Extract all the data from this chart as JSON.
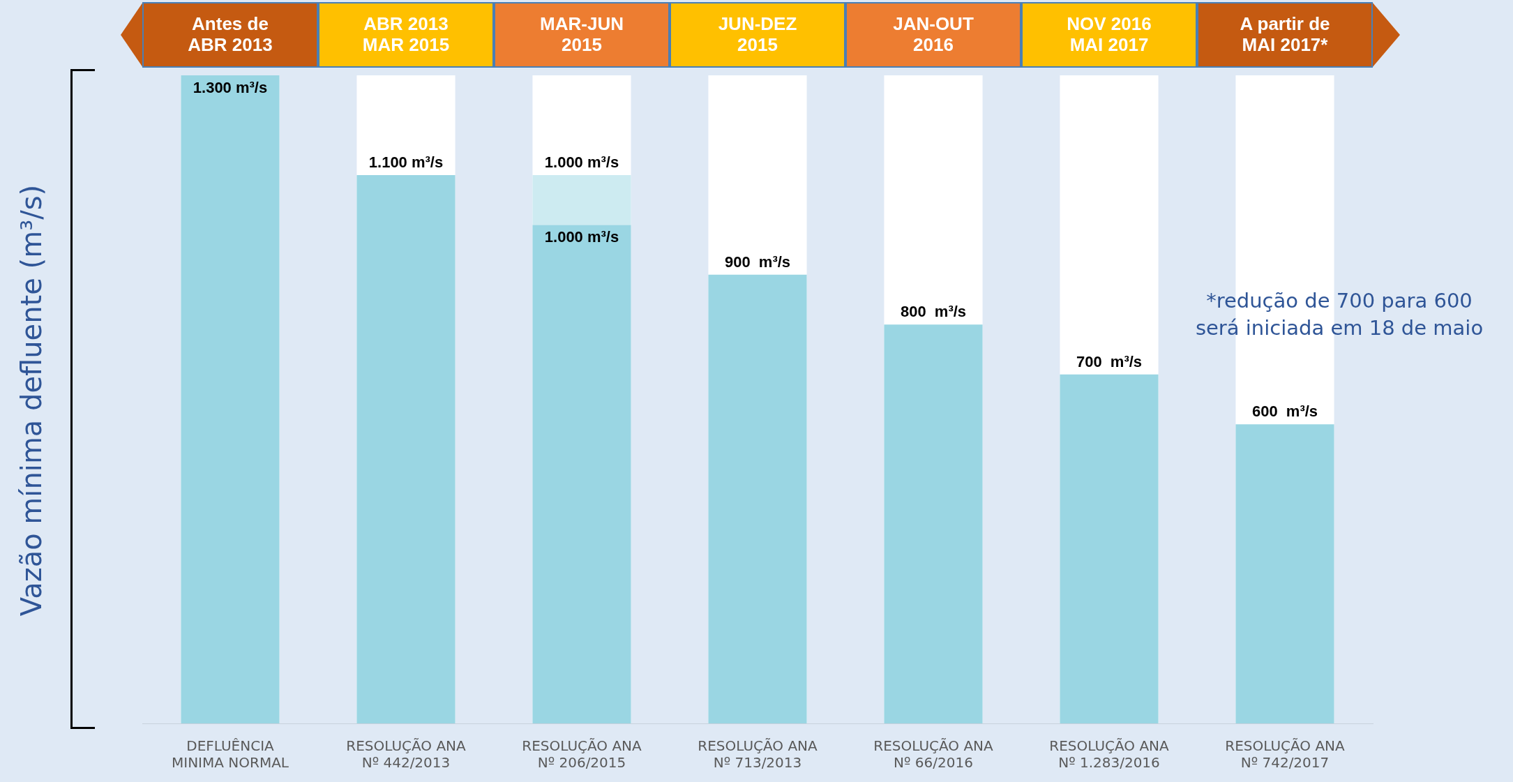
{
  "chart_data": {
    "type": "bar",
    "ylabel": "Vazão mínima defluente (m³/s)",
    "categories": [
      "DEFLUÊNCIA\nMINIMA NORMAL",
      "RESOLUÇÃO ANA\nNº 442/2013",
      "RESOLUÇÃO ANA\nNº 206/2015",
      "RESOLUÇÃO ANA\nNº 713/2013",
      "RESOLUÇÃO ANA\nNº 66/2016",
      "RESOLUÇÃO ANA\nNº 1.283/2016",
      "RESOLUÇÃO ANA\nNº 742/2017"
    ],
    "stacked": true,
    "series": [
      {
        "color": "#9ad6e3",
        "values": [
          1300,
          1100,
          1000,
          900,
          800,
          700,
          600
        ],
        "value_labels": [
          "1.300 m³/s",
          "1.100 m³/s",
          "1.000 m³/s",
          "900  m³/s",
          "800  m³/s",
          "700  m³/s",
          "600  m³/s"
        ]
      },
      {
        "color": "#cdebf1",
        "values": [
          null,
          null,
          100,
          null,
          null,
          null,
          null
        ]
      }
    ],
    "ylim": [
      0,
      1300
    ],
    "tick_labels": "x",
    "legend": false,
    "annotations": [
      "Antes de\nABR 2013",
      "ABR 2013\nMAR 2015",
      "MAR-JUN\n2015",
      "JUN-DEZ\n2015",
      "JAN-OUT\n2016",
      "NOV 2016\nMAI 2017",
      "A partir de\nMAI 2017*",
      "*redução de 700 para 600\nserá iniciada em 18 de maio",
      {
        "text": "1.000 m³/s",
        "x": "RESOLUÇÃO ANA\nNº 206/2015",
        "y": 1100
      }
    ]
  }
}
